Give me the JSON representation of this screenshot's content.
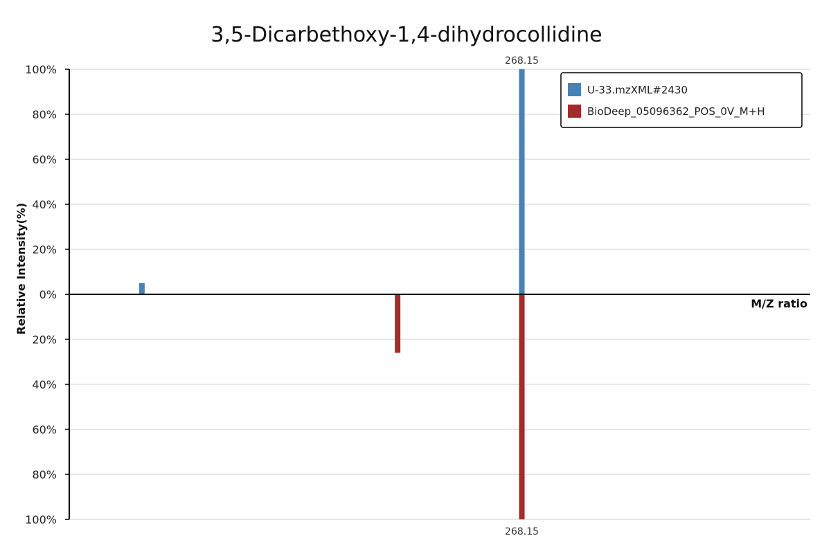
{
  "chart_data": {
    "type": "bar",
    "subtype": "mirror-mass-spectrum",
    "title": "3,5-Dicarbethoxy-1,4-dihydrocollidine",
    "xlabel": "M/Z ratio",
    "ylabel": "Relative Intensity(%)",
    "ylim_top": [
      0,
      100
    ],
    "ylim_bottom": [
      0,
      100
    ],
    "xlim": [
      237,
      288
    ],
    "yticks_top": [
      "100%",
      "80%",
      "60%",
      "40%",
      "20%",
      "0%"
    ],
    "yticks_bottom": [
      "20%",
      "40%",
      "60%",
      "80%",
      "100%"
    ],
    "grid": true,
    "legend_position": "top-right",
    "series": [
      {
        "name": "U-33.mzXML#2430",
        "color": "#4682b4",
        "direction": "up",
        "peaks": [
          {
            "mz": 242,
            "intensity": 5,
            "label": ""
          },
          {
            "mz": 268.15,
            "intensity": 100,
            "label": "268.15"
          }
        ]
      },
      {
        "name": "BioDeep_05096362_POS_0V_M+H",
        "color": "#a52a2a",
        "direction": "down",
        "peaks": [
          {
            "mz": 259.6,
            "intensity": 26,
            "label": ""
          },
          {
            "mz": 268.15,
            "intensity": 100,
            "label": "268.15"
          }
        ]
      }
    ]
  }
}
